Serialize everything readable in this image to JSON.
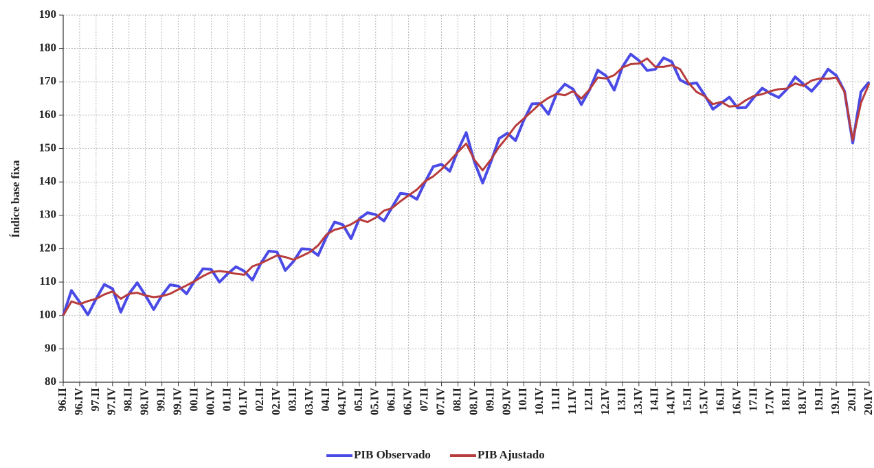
{
  "chart_data": {
    "type": "line",
    "y_label": "Índice base fixa",
    "categories": [
      "96.II",
      null,
      "96.IV",
      null,
      "97.II",
      null,
      "97.IV",
      null,
      "98.II",
      null,
      "98.IV",
      null,
      "99.II",
      null,
      "99.IV",
      null,
      "00.II",
      null,
      "00.IV",
      null,
      "01.II",
      null,
      "01.IV",
      null,
      "02.II",
      null,
      "02.IV",
      null,
      "03.II",
      null,
      "03.IV",
      null,
      "04.II",
      null,
      "04.IV",
      null,
      "05.II",
      null,
      "05.IV",
      null,
      "06.II",
      null,
      "06.IV",
      null,
      "07.II",
      null,
      "07.IV",
      null,
      "08.II",
      null,
      "08.IV",
      null,
      "09.II",
      null,
      "09.IV",
      null,
      "10.II",
      null,
      "10.IV",
      null,
      "11.II",
      null,
      "11.IV",
      null,
      "12.II",
      null,
      "12.IV",
      null,
      "13.II",
      null,
      "13.IV",
      null,
      "14.II",
      null,
      "14.IV",
      null,
      "15.II",
      null,
      "15.IV",
      null,
      "16.II",
      null,
      "16.IV",
      null,
      "17.II",
      null,
      "17.IV",
      null,
      "18.II",
      null,
      "18.IV",
      null,
      "19.II",
      null,
      "19.IV",
      null,
      "20.II",
      null,
      "20.IV"
    ],
    "series": [
      {
        "name": "PIB Observado",
        "color": "#4a4ae6",
        "values": [
          100,
          107.5,
          104,
          100.2,
          105,
          109.3,
          108,
          101,
          106.5,
          109.8,
          106,
          101.8,
          106,
          109.2,
          108.8,
          106.5,
          110.5,
          114,
          113.8,
          110,
          112.5,
          114.6,
          113.3,
          110.6,
          115.5,
          119.3,
          119,
          113.5,
          116.2,
          120,
          119.8,
          118,
          123.5,
          128,
          127.2,
          123,
          129,
          130.8,
          130.2,
          128.3,
          132.5,
          136.6,
          136.3,
          134.8,
          140,
          144.6,
          145.3,
          143.2,
          149.5,
          154.8,
          146,
          139.7,
          146,
          153,
          154.6,
          152.4,
          158.5,
          163.4,
          163.5,
          160.3,
          166.5,
          169.3,
          167.8,
          163.2,
          167.6,
          173.5,
          171.8,
          167.5,
          174.5,
          178.3,
          176.4,
          173.4,
          173.8,
          177.2,
          176,
          170.6,
          169.3,
          169.7,
          166,
          161.8,
          163.6,
          165.4,
          162.2,
          162.3,
          165.4,
          168.1,
          166.5,
          165.3,
          167.8,
          171.5,
          169.3,
          167.2,
          170,
          173.8,
          171.9,
          167.2,
          151.7,
          167,
          170
        ]
      },
      {
        "name": "PIB Ajustado",
        "color": "#b83c3c",
        "values": [
          100,
          104.2,
          103.4,
          104.3,
          105,
          106.3,
          107.2,
          105,
          106.5,
          106.8,
          106,
          105.5,
          105.8,
          106.5,
          107.8,
          109,
          110.3,
          111.8,
          113,
          113.3,
          113,
          112.5,
          112.2,
          114.7,
          115.6,
          116.8,
          118,
          117.5,
          116.7,
          117.8,
          119,
          121,
          124.2,
          125.7,
          126.3,
          127.3,
          128.8,
          128,
          129.3,
          131.4,
          132.2,
          134.2,
          136,
          137.7,
          140.2,
          141.7,
          143.8,
          146.3,
          149,
          151.5,
          146.6,
          143.5,
          146.7,
          150.5,
          153.5,
          156.8,
          159,
          161.2,
          163.5,
          165.2,
          166.4,
          166,
          167.2,
          165,
          167.7,
          171.3,
          171,
          172,
          174.3,
          175.3,
          175.5,
          177,
          174.5,
          174.5,
          175,
          173.8,
          169.8,
          167,
          165.7,
          163.3,
          164,
          162.6,
          162.8,
          164.5,
          165.8,
          166.3,
          167.2,
          167.8,
          168,
          169.5,
          168.8,
          170.4,
          171,
          170.9,
          171.3,
          167,
          152.5,
          163.7,
          169.5
        ]
      }
    ],
    "ylim": [
      80,
      190
    ],
    "yticks": [
      80,
      90,
      100,
      110,
      120,
      130,
      140,
      150,
      160,
      170,
      180,
      190
    ],
    "grid": true,
    "legend": "bottom"
  }
}
